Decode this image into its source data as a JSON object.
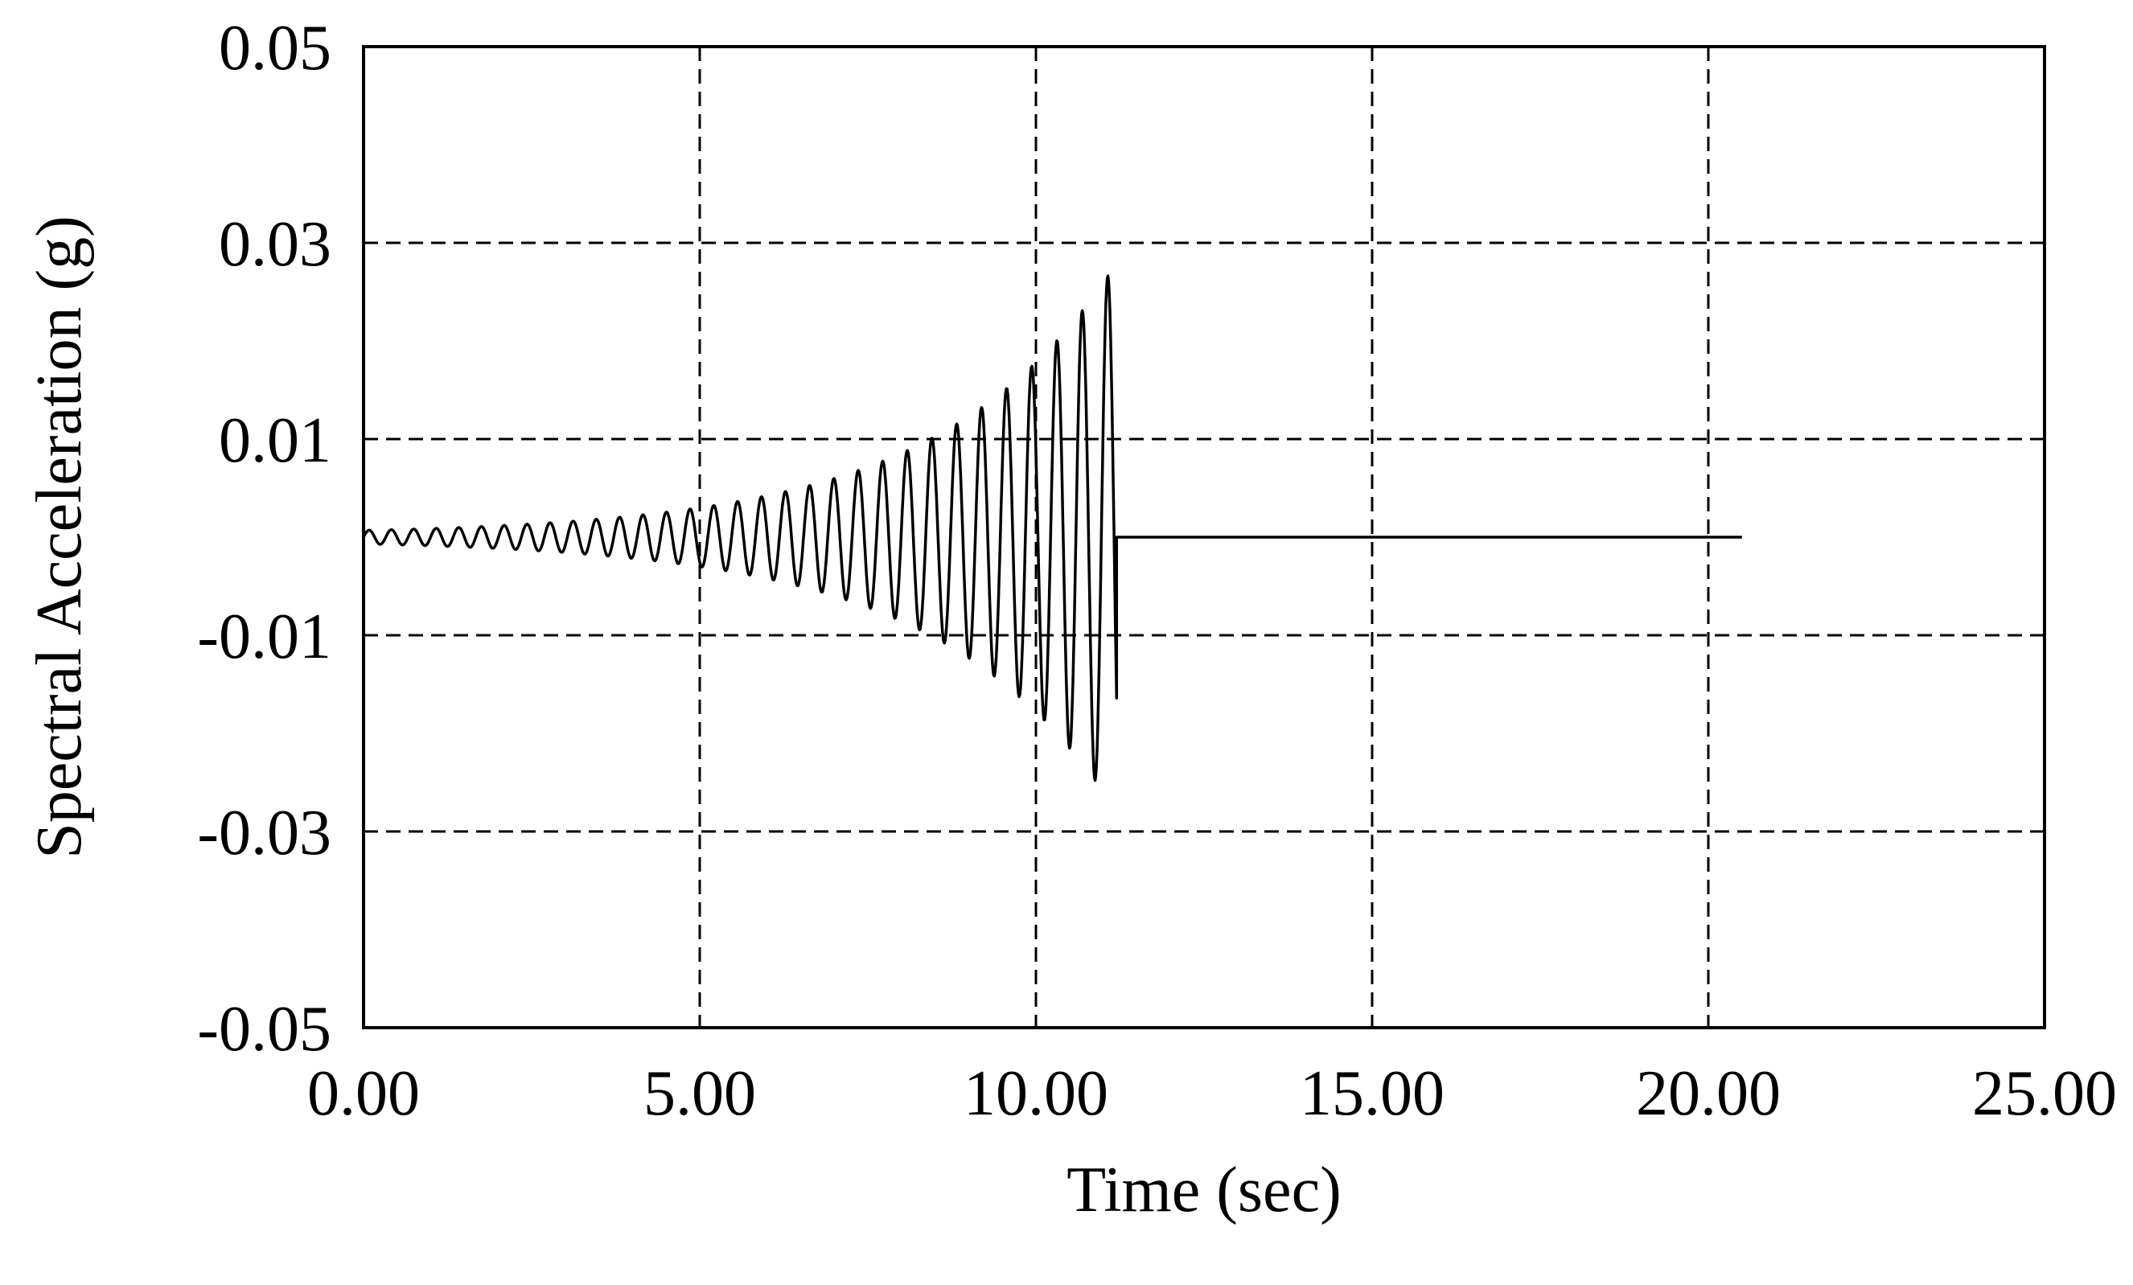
{
  "chart_data": {
    "type": "line",
    "title": "",
    "xlabel": "Time (sec)",
    "ylabel": "Spectral Acceleration (g)",
    "xlim": [
      0,
      25
    ],
    "ylim": [
      -0.05,
      0.05
    ],
    "x_ticks": [
      0,
      5,
      10,
      15,
      20,
      25
    ],
    "x_tick_labels": [
      "0.00",
      "5.00",
      "10.00",
      "15.00",
      "20.00",
      "25.00"
    ],
    "y_ticks": [
      0.05,
      0.03,
      0.01,
      -0.01,
      -0.03,
      -0.05
    ],
    "y_tick_labels": [
      "0.05",
      "0.03",
      "0.01",
      "-0.01",
      "-0.03",
      "-0.05"
    ],
    "grid": true,
    "legend": "none",
    "series": [
      {
        "color": "#000000",
        "signal": {
          "shape": "sine sweep with growing amplitude, then held constant",
          "baseline": 0.0,
          "start_time": 0.0,
          "cutoff_time": 11.2,
          "end_time": 20.5,
          "start_amplitude": 0.0007,
          "peak_amplitude": 0.028,
          "start_period": 0.33,
          "end_period": 0.38,
          "sample_step": 0.01
        }
      }
    ]
  }
}
